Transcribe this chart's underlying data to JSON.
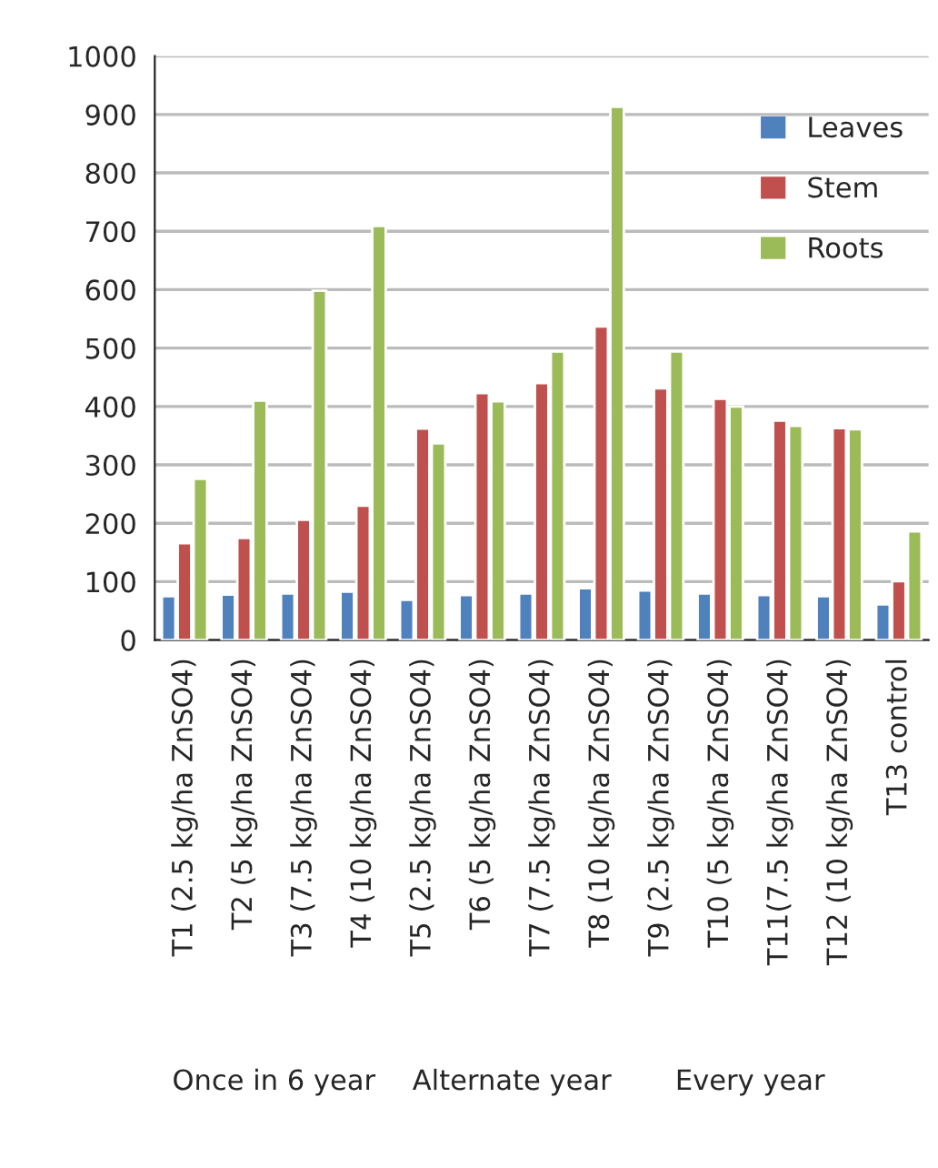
{
  "chart_data": {
    "type": "bar",
    "categories": [
      "T1 (2.5 kg/ha ZnSO4)",
      "T2 (5 kg/ha ZnSO4)",
      "T3 (7.5 kg/ha ZnSO4)",
      "T4 (10 kg/ha ZnSO4)",
      "T5 (2.5 kg/ha ZnSO4)",
      "T6 (5 kg/ha ZnSO4)",
      "T7 (7.5 kg/ha ZnSO4)",
      "T8 (10 kg/ha ZnSO4)",
      "T9 (2.5 kg/ha ZnSO4)",
      "T10 (5 kg/ha ZnSO4)",
      "T11(7.5 kg/ha ZnSO4)",
      "T12 (10 kg/ha ZnSO4)",
      "T13 control"
    ],
    "series": [
      {
        "name": "Leaves",
        "color": "#4f81bd",
        "values": [
          75,
          78,
          80,
          83,
          69,
          77,
          80,
          89,
          85,
          80,
          77,
          75,
          61
        ]
      },
      {
        "name": "Stem",
        "color": "#c0504d",
        "values": [
          166,
          175,
          206,
          230,
          362,
          423,
          440,
          537,
          431,
          413,
          376,
          363,
          101
        ]
      },
      {
        "name": "Roots",
        "color": "#9bbb59",
        "values": [
          276,
          410,
          598,
          709,
          337,
          409,
          494,
          913,
          494,
          400,
          367,
          361,
          186
        ]
      }
    ],
    "annotations": [
      "Once in 6 year",
      "Alternate year",
      "Every year"
    ],
    "ylim": [
      0,
      1000
    ],
    "yticks": [
      0,
      100,
      200,
      300,
      400,
      500,
      600,
      700,
      800,
      900,
      1000
    ],
    "grid": "y",
    "legend": "top right"
  }
}
